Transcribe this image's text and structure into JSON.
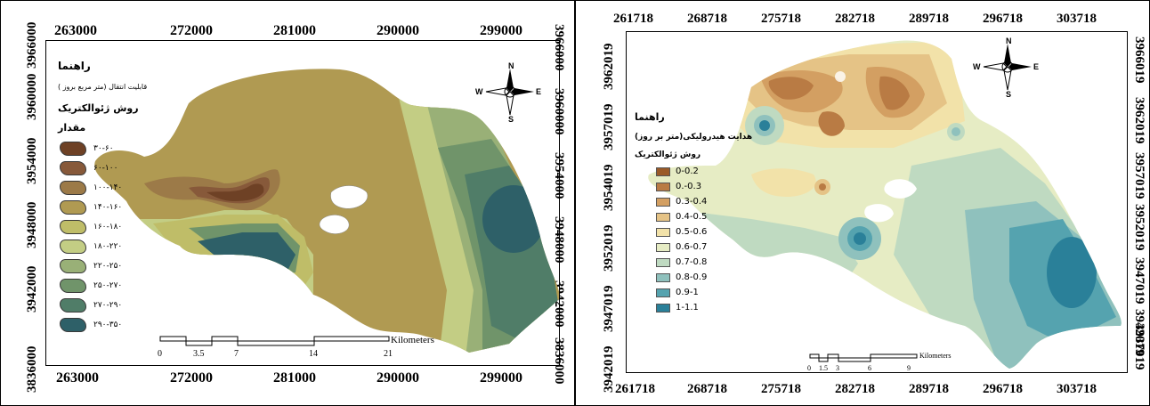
{
  "left_map": {
    "top_ticks": [
      "263000",
      "272000",
      "281000",
      "290000",
      "299000"
    ],
    "bottom_ticks": [
      "263000",
      "272000",
      "281000",
      "290000",
      "299000"
    ],
    "left_ticks": [
      "3966000",
      "3960000",
      "3954000",
      "3948000",
      "3942000",
      "3836000"
    ],
    "right_ticks": [
      "3966000",
      "3960000",
      "3954000",
      "3948000",
      "3942000",
      "3836000"
    ],
    "legend": {
      "title": "راهنما",
      "subtitle": "قابلیت انتقال (متر مربع بروز )",
      "method": "روش ژئوالکتریک",
      "value_heading": "مقدار",
      "items": [
        {
          "label": "۳۰-۶۰",
          "color": "#6e4125"
        },
        {
          "label": "۶۰-۱۰۰",
          "color": "#87593a"
        },
        {
          "label": "۱۰۰-۱۴۰",
          "color": "#9c7a48"
        },
        {
          "label": "۱۴۰-۱۶۰",
          "color": "#b09a52"
        },
        {
          "label": "۱۶۰-۱۸۰",
          "color": "#bfbd68"
        },
        {
          "label": "۱۸۰-۲۲۰",
          "color": "#c3cd84"
        },
        {
          "label": "۲۲۰-۲۵۰",
          "color": "#99b077"
        },
        {
          "label": "۲۵۰-۲۷۰",
          "color": "#70946a"
        },
        {
          "label": "۲۷۰-۲۹۰",
          "color": "#507d68"
        },
        {
          "label": "۲۹۰-۳۵۰",
          "color": "#2e6068"
        }
      ]
    },
    "scale": {
      "labels": [
        "0",
        "3.5",
        "7",
        "14",
        "21"
      ],
      "unit": "Kilometers"
    },
    "north": {
      "n": "N",
      "s": "S",
      "e": "E",
      "w": "W"
    }
  },
  "right_map": {
    "top_ticks": [
      "261718",
      "268718",
      "275718",
      "282718",
      "289718",
      "296718",
      "303718"
    ],
    "bottom_ticks": [
      "261718",
      "268718",
      "275718",
      "282718",
      "289718",
      "296718",
      "303718"
    ],
    "left_ticks": [
      "3962019",
      "3957019",
      "3954019",
      "3952019",
      "3947019",
      "3942019"
    ],
    "right_ticks": [
      "3966019",
      "3962019",
      "3957019",
      "3952019",
      "3947019",
      "3942019",
      "3937019"
    ],
    "legend": {
      "title": "راهنما",
      "subtitle": "هدایت هیدرولیکی(متر بر روز)",
      "method": "روش ژئوالکتریک",
      "items": [
        {
          "label": "0-0.2",
          "color": "#9a5a28"
        },
        {
          "label": "0.-0.3",
          "color": "#b97b44"
        },
        {
          "label": "0.3-0.4",
          "color": "#d39f62"
        },
        {
          "label": "0.4-0.5",
          "color": "#e5c386"
        },
        {
          "label": "0.5-0.6",
          "color": "#f2e2a9"
        },
        {
          "label": "0.6-0.7",
          "color": "#e6ecc4"
        },
        {
          "label": "0.7-0.8",
          "color": "#bfdac1"
        },
        {
          "label": "0.8-0.9",
          "color": "#8fc1bd"
        },
        {
          "label": "0.9-1",
          "color": "#55a3af"
        },
        {
          "label": "1-1.1",
          "color": "#2a8099"
        }
      ]
    },
    "scale": {
      "labels": [
        "0",
        "1.5",
        "3",
        "6",
        "9"
      ],
      "unit": "Kilometers"
    },
    "north": {
      "n": "N",
      "s": "S",
      "e": "E",
      "w": "W"
    }
  }
}
